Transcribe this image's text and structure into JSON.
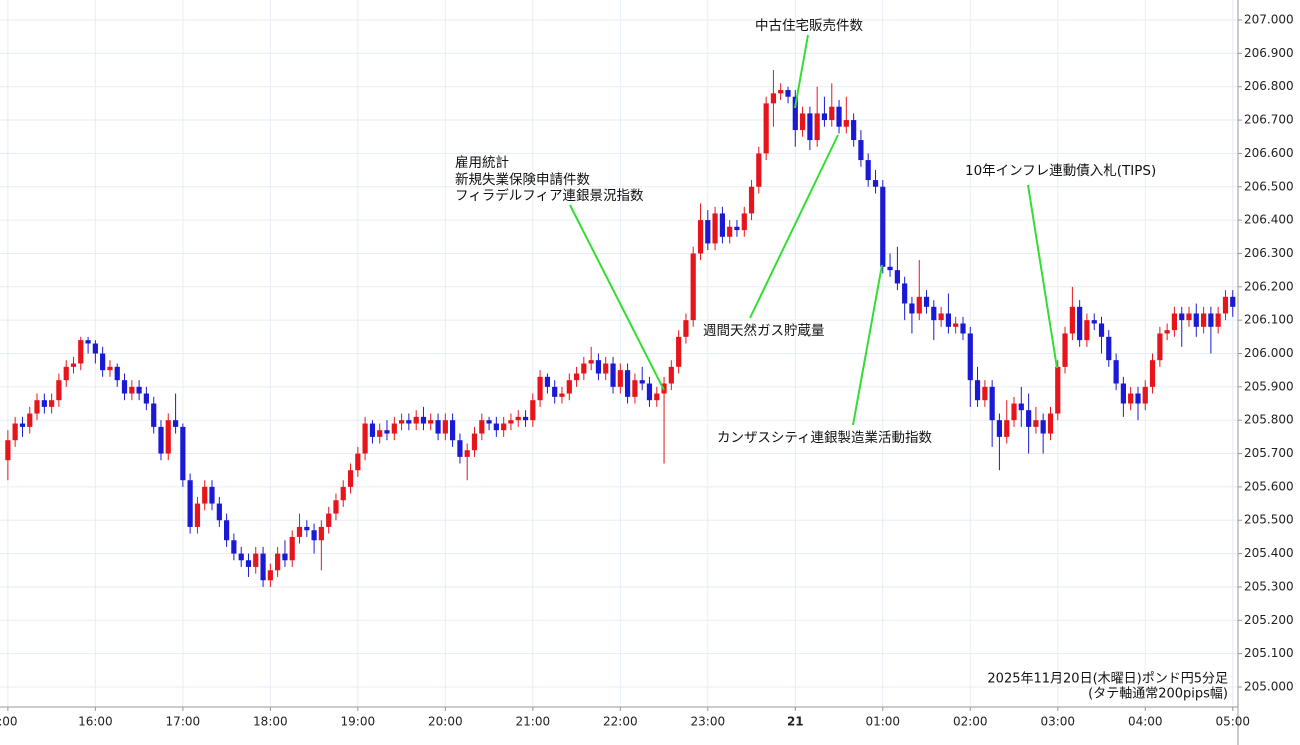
{
  "chart_data": {
    "type": "candlestick",
    "up_color": "#e8141c",
    "down_color": "#1a1ad6",
    "grid": true,
    "xlim": [
      14.91,
      29.06
    ],
    "ylim": [
      204.94,
      207.06
    ],
    "xticks": [
      {
        "value": 15,
        "label": ":00"
      },
      {
        "value": 16,
        "label": "16:00"
      },
      {
        "value": 17,
        "label": "17:00"
      },
      {
        "value": 18,
        "label": "18:00"
      },
      {
        "value": 19,
        "label": "19:00"
      },
      {
        "value": 20,
        "label": "20:00"
      },
      {
        "value": 21,
        "label": "21:00"
      },
      {
        "value": 22,
        "label": "22:00"
      },
      {
        "value": 23,
        "label": "23:00"
      },
      {
        "value": 24,
        "label": "21"
      },
      {
        "value": 25,
        "label": "01:00"
      },
      {
        "value": 26,
        "label": "02:00"
      },
      {
        "value": 27,
        "label": "03:00"
      },
      {
        "value": 28,
        "label": "04:00"
      },
      {
        "value": 29,
        "label": "05:00"
      }
    ],
    "yticks": [
      {
        "value": 205,
        "label": "205.000"
      },
      {
        "value": 205.1,
        "label": "205.100"
      },
      {
        "value": 205.2,
        "label": "205.200"
      },
      {
        "value": 205.3,
        "label": "205.300"
      },
      {
        "value": 205.4,
        "label": "205.400"
      },
      {
        "value": 205.5,
        "label": "205.500"
      },
      {
        "value": 205.6,
        "label": "205.600"
      },
      {
        "value": 205.7,
        "label": "205.700"
      },
      {
        "value": 205.8,
        "label": "205.800"
      },
      {
        "value": 205.9,
        "label": "205.900"
      },
      {
        "value": 206,
        "label": "206.000"
      },
      {
        "value": 206.1,
        "label": "206.100"
      },
      {
        "value": 206.2,
        "label": "206.200"
      },
      {
        "value": 206.3,
        "label": "206.300"
      },
      {
        "value": 206.4,
        "label": "206.400"
      },
      {
        "value": 206.5,
        "label": "206.500"
      },
      {
        "value": 206.6,
        "label": "206.600"
      },
      {
        "value": 206.7,
        "label": "206.700"
      },
      {
        "value": 206.8,
        "label": "206.800"
      },
      {
        "value": 206.9,
        "label": "206.900"
      },
      {
        "value": 207,
        "label": "207.000"
      }
    ],
    "annotations": [
      {
        "lines": [
          "雇用統計",
          "新規失業保険申請件数",
          "フィラデルフィア連銀景況指数"
        ]
      },
      {
        "lines": [
          "中古住宅販売件数"
        ]
      },
      {
        "lines": [
          "週間天然ガス貯蔵量"
        ]
      },
      {
        "lines": [
          "カンザスシティ連銀製造業活動指数"
        ]
      },
      {
        "lines": [
          "10年インフレ連動債入札(TIPS)"
        ]
      }
    ],
    "note": [
      "2025年11月20日(木曜日)ポンド円5分足",
      "(タテ軸通常200pips幅)"
    ],
    "x": [
      15,
      15.083,
      15.167,
      15.25,
      15.333,
      15.417,
      15.5,
      15.583,
      15.667,
      15.75,
      15.833,
      15.917,
      16,
      16.083,
      16.167,
      16.25,
      16.333,
      16.417,
      16.5,
      16.583,
      16.667,
      16.75,
      16.833,
      16.917,
      17,
      17.083,
      17.167,
      17.25,
      17.333,
      17.417,
      17.5,
      17.583,
      17.667,
      17.75,
      17.833,
      17.917,
      18,
      18.083,
      18.167,
      18.25,
      18.333,
      18.417,
      18.5,
      18.583,
      18.667,
      18.75,
      18.833,
      18.917,
      19,
      19.083,
      19.167,
      19.25,
      19.333,
      19.417,
      19.5,
      19.583,
      19.667,
      19.75,
      19.833,
      19.917,
      20,
      20.083,
      20.167,
      20.25,
      20.333,
      20.417,
      20.5,
      20.583,
      20.667,
      20.75,
      20.833,
      20.917,
      21,
      21.083,
      21.167,
      21.25,
      21.333,
      21.417,
      21.5,
      21.583,
      21.667,
      21.75,
      21.833,
      21.917,
      22,
      22.083,
      22.167,
      22.25,
      22.333,
      22.417,
      22.5,
      22.583,
      22.667,
      22.75,
      22.833,
      22.917,
      23,
      23.083,
      23.167,
      23.25,
      23.333,
      23.417,
      23.5,
      23.583,
      23.667,
      23.75,
      23.833,
      23.917,
      24,
      24.083,
      24.167,
      24.25,
      24.333,
      24.417,
      24.5,
      24.583,
      24.667,
      24.75,
      24.833,
      24.917,
      25,
      25.083,
      25.167,
      25.25,
      25.333,
      25.417,
      25.5,
      25.583,
      25.667,
      25.75,
      25.833,
      25.917,
      26,
      26.083,
      26.167,
      26.25,
      26.333,
      26.417,
      26.5,
      26.583,
      26.667,
      26.75,
      26.833,
      26.917,
      27,
      27.083,
      27.167,
      27.25,
      27.333,
      27.417,
      27.5,
      27.583,
      27.667,
      27.75,
      27.833,
      27.917,
      28,
      28.083,
      28.167,
      28.25,
      28.333,
      28.417,
      28.5,
      28.583,
      28.667,
      28.75,
      28.833,
      28.917,
      29
    ],
    "ohlc": [
      [
        205.68,
        205.77,
        205.62,
        205.74
      ],
      [
        205.74,
        205.81,
        205.72,
        205.79
      ],
      [
        205.79,
        205.81,
        205.75,
        205.78
      ],
      [
        205.78,
        205.84,
        205.76,
        205.82
      ],
      [
        205.82,
        205.88,
        205.8,
        205.86
      ],
      [
        205.86,
        205.88,
        205.82,
        205.84
      ],
      [
        205.84,
        205.88,
        205.82,
        205.86
      ],
      [
        205.86,
        205.94,
        205.84,
        205.92
      ],
      [
        205.92,
        205.98,
        205.9,
        205.96
      ],
      [
        205.96,
        205.99,
        205.94,
        205.97
      ],
      [
        205.97,
        206.05,
        205.95,
        206.04
      ],
      [
        206.04,
        206.05,
        206.0,
        206.03
      ],
      [
        206.03,
        206.04,
        205.97,
        206.0
      ],
      [
        206.0,
        206.02,
        205.93,
        205.95
      ],
      [
        205.95,
        205.98,
        205.93,
        205.96
      ],
      [
        205.96,
        205.97,
        205.9,
        205.92
      ],
      [
        205.92,
        205.94,
        205.86,
        205.88
      ],
      [
        205.88,
        205.92,
        205.86,
        205.9
      ],
      [
        205.9,
        205.92,
        205.86,
        205.88
      ],
      [
        205.88,
        205.9,
        205.83,
        205.85
      ],
      [
        205.85,
        205.87,
        205.76,
        205.78
      ],
      [
        205.78,
        205.8,
        205.68,
        205.7
      ],
      [
        205.7,
        205.82,
        205.68,
        205.8
      ],
      [
        205.8,
        205.88,
        205.76,
        205.78
      ],
      [
        205.78,
        205.79,
        205.6,
        205.62
      ],
      [
        205.62,
        205.64,
        205.46,
        205.48
      ],
      [
        205.48,
        205.57,
        205.46,
        205.55
      ],
      [
        205.55,
        205.62,
        205.53,
        205.6
      ],
      [
        205.6,
        205.62,
        205.53,
        205.55
      ],
      [
        205.55,
        205.57,
        205.48,
        205.5
      ],
      [
        205.5,
        205.52,
        205.42,
        205.44
      ],
      [
        205.44,
        205.46,
        205.38,
        205.4
      ],
      [
        205.4,
        205.42,
        205.36,
        205.38
      ],
      [
        205.38,
        205.4,
        205.33,
        205.36
      ],
      [
        205.36,
        205.42,
        205.34,
        205.4
      ],
      [
        205.4,
        205.42,
        205.3,
        205.32
      ],
      [
        205.32,
        205.37,
        205.3,
        205.35
      ],
      [
        205.35,
        205.42,
        205.33,
        205.4
      ],
      [
        205.4,
        205.44,
        205.36,
        205.38
      ],
      [
        205.38,
        205.47,
        205.36,
        205.45
      ],
      [
        205.45,
        205.52,
        205.43,
        205.48
      ],
      [
        205.48,
        205.5,
        205.45,
        205.47
      ],
      [
        205.47,
        205.49,
        205.4,
        205.44
      ],
      [
        205.44,
        205.5,
        205.35,
        205.48
      ],
      [
        205.48,
        205.54,
        205.46,
        205.52
      ],
      [
        205.52,
        205.58,
        205.5,
        205.56
      ],
      [
        205.56,
        205.62,
        205.54,
        205.6
      ],
      [
        205.6,
        205.67,
        205.58,
        205.65
      ],
      [
        205.65,
        205.72,
        205.63,
        205.7
      ],
      [
        205.7,
        205.81,
        205.68,
        205.79
      ],
      [
        205.79,
        205.8,
        205.73,
        205.75
      ],
      [
        205.75,
        205.79,
        205.73,
        205.77
      ],
      [
        205.77,
        205.8,
        205.74,
        205.76
      ],
      [
        205.76,
        205.81,
        205.74,
        205.79
      ],
      [
        205.79,
        205.82,
        205.77,
        205.8
      ],
      [
        205.8,
        205.82,
        205.77,
        205.79
      ],
      [
        205.79,
        205.83,
        205.77,
        205.81
      ],
      [
        205.81,
        205.84,
        205.77,
        205.79
      ],
      [
        205.79,
        205.82,
        205.77,
        205.8
      ],
      [
        205.8,
        205.82,
        205.74,
        205.76
      ],
      [
        205.76,
        205.82,
        205.74,
        205.8
      ],
      [
        205.8,
        205.82,
        205.72,
        205.74
      ],
      [
        205.74,
        205.76,
        205.67,
        205.69
      ],
      [
        205.69,
        205.73,
        205.62,
        205.71
      ],
      [
        205.71,
        205.78,
        205.69,
        205.76
      ],
      [
        205.76,
        205.82,
        205.74,
        205.8
      ],
      [
        205.8,
        205.81,
        205.77,
        205.79
      ],
      [
        205.79,
        205.81,
        205.75,
        205.77
      ],
      [
        205.77,
        205.81,
        205.75,
        205.79
      ],
      [
        205.79,
        205.82,
        205.77,
        205.8
      ],
      [
        205.8,
        205.83,
        205.78,
        205.81
      ],
      [
        205.81,
        205.83,
        205.78,
        205.8
      ],
      [
        205.8,
        205.88,
        205.78,
        205.86
      ],
      [
        205.86,
        205.95,
        205.84,
        205.93
      ],
      [
        205.93,
        205.94,
        205.88,
        205.9
      ],
      [
        205.9,
        205.92,
        205.85,
        205.87
      ],
      [
        205.87,
        205.9,
        205.85,
        205.88
      ],
      [
        205.88,
        205.94,
        205.86,
        205.92
      ],
      [
        205.92,
        205.96,
        205.9,
        205.94
      ],
      [
        205.94,
        205.99,
        205.92,
        205.97
      ],
      [
        205.97,
        206.02,
        205.95,
        205.98
      ],
      [
        205.98,
        206.0,
        205.92,
        205.94
      ],
      [
        205.94,
        205.99,
        205.92,
        205.97
      ],
      [
        205.97,
        205.99,
        205.88,
        205.9
      ],
      [
        205.9,
        205.97,
        205.88,
        205.95
      ],
      [
        205.95,
        205.97,
        205.85,
        205.87
      ],
      [
        205.87,
        205.94,
        205.85,
        205.92
      ],
      [
        205.92,
        205.96,
        205.89,
        205.91
      ],
      [
        205.91,
        205.93,
        205.84,
        205.86
      ],
      [
        205.86,
        205.9,
        205.84,
        205.88
      ],
      [
        205.88,
        205.93,
        205.67,
        205.91
      ],
      [
        205.91,
        205.98,
        205.89,
        205.96
      ],
      [
        205.96,
        206.07,
        205.94,
        206.05
      ],
      [
        206.05,
        206.12,
        206.03,
        206.1
      ],
      [
        206.1,
        206.32,
        206.08,
        206.3
      ],
      [
        206.3,
        206.45,
        206.28,
        206.4
      ],
      [
        206.4,
        206.43,
        206.31,
        206.33
      ],
      [
        206.33,
        206.44,
        206.31,
        206.42
      ],
      [
        206.42,
        206.44,
        206.33,
        206.35
      ],
      [
        206.35,
        206.4,
        206.33,
        206.38
      ],
      [
        206.38,
        206.4,
        206.35,
        206.37
      ],
      [
        206.37,
        206.44,
        206.35,
        206.42
      ],
      [
        206.42,
        206.52,
        206.4,
        206.5
      ],
      [
        206.5,
        206.62,
        206.48,
        206.6
      ],
      [
        206.6,
        206.77,
        206.58,
        206.75
      ],
      [
        206.75,
        206.85,
        206.68,
        206.78
      ],
      [
        206.78,
        206.81,
        206.76,
        206.79
      ],
      [
        206.79,
        206.8,
        206.75,
        206.77
      ],
      [
        206.77,
        206.79,
        206.62,
        206.67
      ],
      [
        206.67,
        206.74,
        206.65,
        206.72
      ],
      [
        206.72,
        206.74,
        206.61,
        206.64
      ],
      [
        206.64,
        206.8,
        206.62,
        206.72
      ],
      [
        206.72,
        206.77,
        206.68,
        206.7
      ],
      [
        206.7,
        206.81,
        206.68,
        206.74
      ],
      [
        206.74,
        206.76,
        206.66,
        206.68
      ],
      [
        206.68,
        206.77,
        206.66,
        206.7
      ],
      [
        206.7,
        206.72,
        206.62,
        206.64
      ],
      [
        206.64,
        206.67,
        206.56,
        206.58
      ],
      [
        206.58,
        206.6,
        206.5,
        206.52
      ],
      [
        206.52,
        206.55,
        206.48,
        206.5
      ],
      [
        206.5,
        206.52,
        206.24,
        206.26
      ],
      [
        206.26,
        206.3,
        206.23,
        206.25
      ],
      [
        206.25,
        206.32,
        206.19,
        206.21
      ],
      [
        206.21,
        206.23,
        206.1,
        206.15
      ],
      [
        206.15,
        206.17,
        206.06,
        206.12
      ],
      [
        206.12,
        206.28,
        206.1,
        206.17
      ],
      [
        206.17,
        206.19,
        206.12,
        206.14
      ],
      [
        206.14,
        206.16,
        206.04,
        206.1
      ],
      [
        206.1,
        206.14,
        206.08,
        206.12
      ],
      [
        206.12,
        206.18,
        206.06,
        206.08
      ],
      [
        206.08,
        206.11,
        206.06,
        206.09
      ],
      [
        206.09,
        206.11,
        206.04,
        206.06
      ],
      [
        206.06,
        206.08,
        205.84,
        205.92
      ],
      [
        205.92,
        205.96,
        205.84,
        205.86
      ],
      [
        205.86,
        205.92,
        205.84,
        205.9
      ],
      [
        205.9,
        205.92,
        205.72,
        205.8
      ],
      [
        205.8,
        205.82,
        205.65,
        205.75
      ],
      [
        205.75,
        205.86,
        205.73,
        205.8
      ],
      [
        205.8,
        205.87,
        205.78,
        205.85
      ],
      [
        205.85,
        205.9,
        205.78,
        205.83
      ],
      [
        205.83,
        205.88,
        205.7,
        205.78
      ],
      [
        205.78,
        205.84,
        205.76,
        205.8
      ],
      [
        205.8,
        205.82,
        205.7,
        205.76
      ],
      [
        205.76,
        205.84,
        205.74,
        205.82
      ],
      [
        205.82,
        205.98,
        205.8,
        205.96
      ],
      [
        205.96,
        206.08,
        205.94,
        206.06
      ],
      [
        206.06,
        206.2,
        206.04,
        206.14
      ],
      [
        206.14,
        206.16,
        206.02,
        206.04
      ],
      [
        206.04,
        206.12,
        206.02,
        206.1
      ],
      [
        206.1,
        206.12,
        206.07,
        206.09
      ],
      [
        206.09,
        206.11,
        206.0,
        206.05
      ],
      [
        206.05,
        206.07,
        205.96,
        205.98
      ],
      [
        205.98,
        206.0,
        205.89,
        205.91
      ],
      [
        205.91,
        205.93,
        205.81,
        205.85
      ],
      [
        205.85,
        205.9,
        205.83,
        205.88
      ],
      [
        205.88,
        205.9,
        205.8,
        205.85
      ],
      [
        205.85,
        205.92,
        205.83,
        205.9
      ],
      [
        205.9,
        206.0,
        205.88,
        205.98
      ],
      [
        205.98,
        206.08,
        205.96,
        206.06
      ],
      [
        206.06,
        206.09,
        206.04,
        206.07
      ],
      [
        206.07,
        206.14,
        206.05,
        206.12
      ],
      [
        206.12,
        206.14,
        206.02,
        206.1
      ],
      [
        206.1,
        206.14,
        206.08,
        206.12
      ],
      [
        206.12,
        206.15,
        206.05,
        206.08
      ],
      [
        206.08,
        206.14,
        206.06,
        206.12
      ],
      [
        206.12,
        206.14,
        206.0,
        206.08
      ],
      [
        206.08,
        206.14,
        206.06,
        206.12
      ],
      [
        206.12,
        206.19,
        206.1,
        206.17
      ],
      [
        206.17,
        206.19,
        206.11,
        206.14
      ]
    ]
  }
}
